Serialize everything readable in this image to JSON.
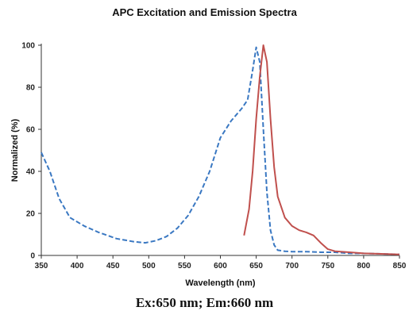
{
  "chart_data": {
    "type": "line",
    "title": "APC Excitation and Emission Spectra",
    "xlabel": "Wavelength (nm)",
    "ylabel": "Normalized (%)",
    "xlim": [
      350,
      850
    ],
    "ylim": [
      0,
      100
    ],
    "x_ticks": [
      350,
      400,
      450,
      500,
      550,
      600,
      650,
      700,
      750,
      800,
      850
    ],
    "y_ticks": [
      0,
      20,
      40,
      60,
      80,
      100
    ],
    "grid": false,
    "series": [
      {
        "color": "#3a78c2",
        "style": "dashed",
        "x": [
          350,
          362,
          375,
          390,
          410,
          430,
          455,
          480,
          495,
          510,
          525,
          540,
          555,
          570,
          585,
          600,
          615,
          630,
          638,
          645,
          650,
          655,
          660,
          665,
          670,
          675,
          680,
          690,
          700,
          720,
          740,
          760,
          780,
          800,
          820,
          850
        ],
        "y": [
          49,
          40,
          27,
          18,
          14,
          11,
          8,
          6.5,
          6,
          7,
          9,
          13,
          19,
          28,
          40,
          56,
          64,
          70,
          74,
          88,
          99,
          92,
          60,
          30,
          12,
          5,
          2.5,
          2,
          1.8,
          1.8,
          1.5,
          1.5,
          1,
          1,
          0.8,
          0.5
        ]
      },
      {
        "color": "#c0504d",
        "style": "solid",
        "x": [
          633,
          640,
          645,
          650,
          655,
          660,
          665,
          670,
          675,
          680,
          690,
          700,
          710,
          720,
          730,
          740,
          750,
          760,
          780,
          800,
          820,
          850
        ],
        "y": [
          9.5,
          22,
          40,
          65,
          85,
          100,
          92,
          65,
          42,
          28,
          18,
          14,
          12,
          11,
          9.5,
          6,
          3,
          2,
          1.5,
          1,
          0.8,
          0.5
        ]
      }
    ]
  },
  "caption": "Ex:650 nm; Em:660 nm"
}
